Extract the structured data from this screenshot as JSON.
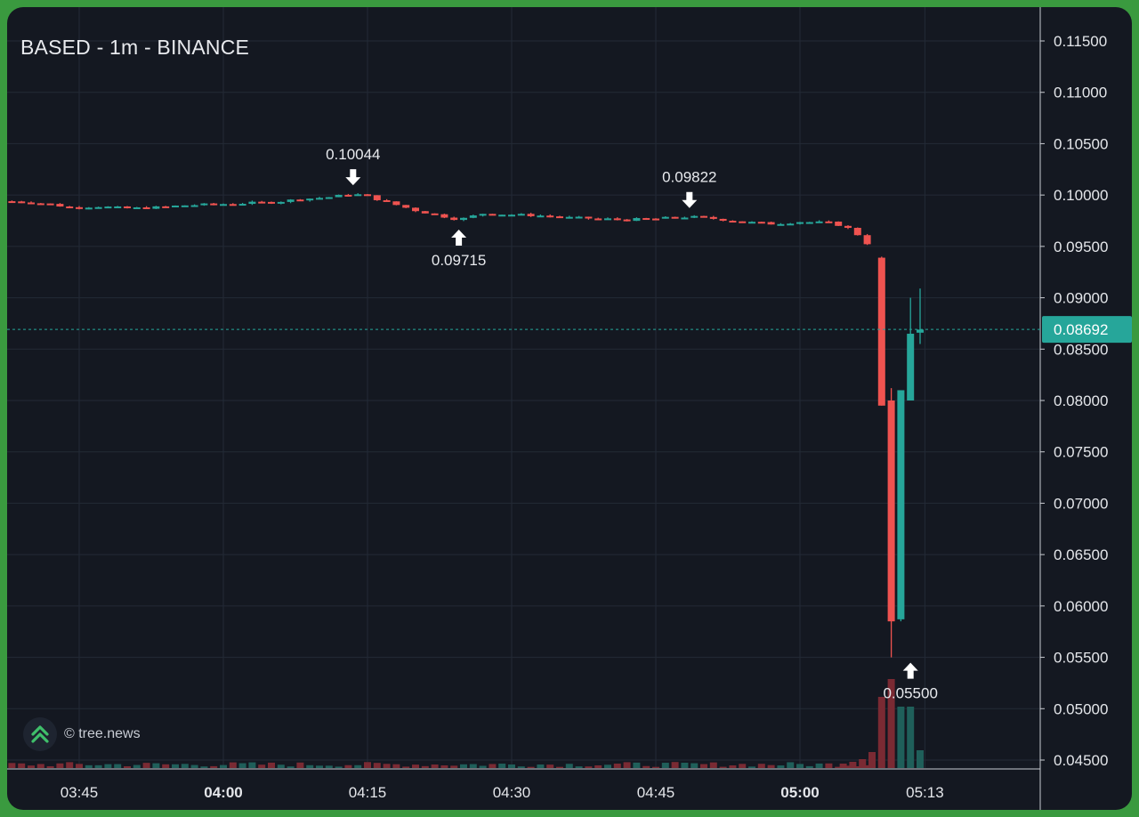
{
  "header": {
    "title": "BASED - 1m - BINANCE"
  },
  "watermark": {
    "text": "© tree.news",
    "logo_icon": "tree-news-chevrons-icon"
  },
  "colors": {
    "up": "#26a69a",
    "down": "#ef5350",
    "up_volume": "#1f5f5a",
    "down_volume": "#7a2a33",
    "price_line": "#26a69a",
    "grid": "#232a36",
    "background": "#141821"
  },
  "chart_data": {
    "type": "candlestick",
    "title": "BASED - 1m - BINANCE",
    "x_ticks": [
      {
        "label": "03:45",
        "minute": 0,
        "bold": false
      },
      {
        "label": "04:00",
        "minute": 15,
        "bold": true
      },
      {
        "label": "04:15",
        "minute": 30,
        "bold": false
      },
      {
        "label": "04:30",
        "minute": 45,
        "bold": false
      },
      {
        "label": "04:45",
        "minute": 60,
        "bold": false
      },
      {
        "label": "05:00",
        "minute": 75,
        "bold": true
      },
      {
        "label": "05:13",
        "minute": 88,
        "bold": false
      }
    ],
    "y_ticks": [
      "0.11500",
      "0.11000",
      "0.10500",
      "0.10000",
      "0.09500",
      "0.09000",
      "0.08500",
      "0.08000",
      "0.07500",
      "0.07000",
      "0.06500",
      "0.06000",
      "0.05500",
      "0.05000",
      "0.04500"
    ],
    "ylim": [
      0.0445,
      0.1175
    ],
    "last_price": "0.08692",
    "last_price_value": 0.08692,
    "annotations": [
      {
        "text": "0.10044",
        "minute": 28.5,
        "price": 0.10044,
        "type": "high"
      },
      {
        "text": "0.09715",
        "minute": 39.5,
        "price": 0.09715,
        "type": "low"
      },
      {
        "text": "0.09822",
        "minute": 63.5,
        "price": 0.09822,
        "type": "high"
      },
      {
        "text": "0.05500",
        "minute": 86.5,
        "price": 0.055,
        "type": "low"
      }
    ],
    "series_x_start_minute": -7.5,
    "close_path": [
      [
        -7.5,
        0.0994
      ],
      [
        -5,
        0.0993
      ],
      [
        -3,
        0.0991
      ],
      [
        -1,
        0.0988
      ],
      [
        2,
        0.0989
      ],
      [
        5,
        0.0987
      ],
      [
        8,
        0.0988
      ],
      [
        11,
        0.099
      ],
      [
        14,
        0.0991
      ],
      [
        17,
        0.0992
      ],
      [
        20,
        0.0993
      ],
      [
        23,
        0.0996
      ],
      [
        26,
        0.0998
      ],
      [
        28.5,
        0.1001
      ],
      [
        30,
        0.0999
      ],
      [
        32,
        0.0993
      ],
      [
        35,
        0.0985
      ],
      [
        37,
        0.0981
      ],
      [
        39.5,
        0.0976
      ],
      [
        42,
        0.0982
      ],
      [
        45,
        0.0981
      ],
      [
        48,
        0.098
      ],
      [
        51,
        0.0978
      ],
      [
        54,
        0.0977
      ],
      [
        57,
        0.0976
      ],
      [
        60,
        0.0977
      ],
      [
        63.5,
        0.0979
      ],
      [
        66,
        0.0977
      ],
      [
        69,
        0.0974
      ],
      [
        72,
        0.0972
      ],
      [
        75,
        0.0974
      ],
      [
        78,
        0.0973
      ],
      [
        79.5,
        0.097
      ],
      [
        80.5,
        0.0965
      ],
      [
        81.5,
        0.0958
      ],
      [
        82.5,
        0.0948
      ]
    ],
    "big_candles": [
      {
        "minute": 83.5,
        "open": 0.0939,
        "high": 0.094,
        "low": 0.0795,
        "close": 0.0795
      },
      {
        "minute": 84.5,
        "open": 0.08,
        "high": 0.0812,
        "low": 0.055,
        "close": 0.0585
      },
      {
        "minute": 85.5,
        "open": 0.0587,
        "high": 0.081,
        "low": 0.0585,
        "close": 0.081
      },
      {
        "minute": 86.5,
        "open": 0.08,
        "high": 0.09,
        "low": 0.08,
        "close": 0.0865
      },
      {
        "minute": 87.5,
        "open": 0.0866,
        "high": 0.0909,
        "low": 0.0855,
        "close": 0.0869
      }
    ],
    "volume_big": [
      {
        "minute": 79.5,
        "rel": 0.05,
        "dir": "down"
      },
      {
        "minute": 80.5,
        "rel": 0.07,
        "dir": "down"
      },
      {
        "minute": 81.5,
        "rel": 0.1,
        "dir": "down"
      },
      {
        "minute": 82.5,
        "rel": 0.18,
        "dir": "down"
      },
      {
        "minute": 83.5,
        "rel": 0.55,
        "dir": "down"
      },
      {
        "minute": 84.5,
        "rel": 0.75,
        "dir": "down"
      },
      {
        "minute": 85.5,
        "rel": 0.44,
        "dir": "up"
      },
      {
        "minute": 86.5,
        "rel": 0.44,
        "dir": "up"
      },
      {
        "minute": 87.5,
        "rel": 0.2,
        "dir": "up"
      }
    ]
  }
}
